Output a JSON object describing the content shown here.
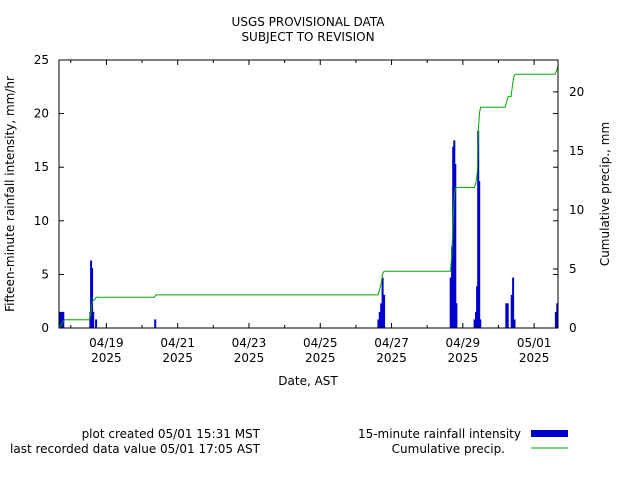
{
  "chart_data": {
    "type": "bar",
    "title_lines": [
      "USGS PROVISIONAL DATA",
      "SUBJECT TO REVISION"
    ],
    "xlabel": "Date, AST",
    "ylabel": "Fifteen-minute rainfall intensity, mm/hr",
    "y2label": "Cumulative precip., mm",
    "xlim": [
      0,
      14.0
    ],
    "ylim": [
      0,
      25
    ],
    "y2lim": [
      0,
      22.7
    ],
    "yticks": [
      0,
      5,
      10,
      15,
      20,
      25
    ],
    "y2ticks": [
      0,
      5,
      10,
      15,
      20
    ],
    "xticks": [
      {
        "x": 1.33,
        "label": "04/19",
        "year": "2025"
      },
      {
        "x": 3.33,
        "label": "04/21",
        "year": "2025"
      },
      {
        "x": 5.33,
        "label": "04/23",
        "year": "2025"
      },
      {
        "x": 7.33,
        "label": "04/25",
        "year": "2025"
      },
      {
        "x": 9.33,
        "label": "04/27",
        "year": "2025"
      },
      {
        "x": 11.33,
        "label": "04/29",
        "year": "2025"
      },
      {
        "x": 13.33,
        "label": "05/01",
        "year": "2025"
      }
    ],
    "grid": false,
    "legend_position": "bottom-right",
    "series": [
      {
        "name": "15-minute rainfall intensity",
        "type": "bar",
        "color": "#0000cc",
        "points": [
          {
            "x": 0.04,
            "y": 1.5
          },
          {
            "x": 0.08,
            "y": 1.5
          },
          {
            "x": 0.12,
            "y": 1.5
          },
          {
            "x": 0.88,
            "y": 1.5
          },
          {
            "x": 0.9,
            "y": 6.3
          },
          {
            "x": 0.93,
            "y": 5.6
          },
          {
            "x": 0.96,
            "y": 1.5
          },
          {
            "x": 1.04,
            "y": 0.8
          },
          {
            "x": 2.7,
            "y": 0.8
          },
          {
            "x": 8.96,
            "y": 0.8
          },
          {
            "x": 9.0,
            "y": 1.5
          },
          {
            "x": 9.04,
            "y": 2.3
          },
          {
            "x": 9.08,
            "y": 4.7
          },
          {
            "x": 9.12,
            "y": 3.1
          },
          {
            "x": 10.99,
            "y": 4.7
          },
          {
            "x": 11.03,
            "y": 7.6
          },
          {
            "x": 11.06,
            "y": 16.9
          },
          {
            "x": 11.09,
            "y": 17.5
          },
          {
            "x": 11.12,
            "y": 15.3
          },
          {
            "x": 11.15,
            "y": 2.3
          },
          {
            "x": 11.66,
            "y": 0.8
          },
          {
            "x": 11.7,
            "y": 1.5
          },
          {
            "x": 11.73,
            "y": 3.9
          },
          {
            "x": 11.76,
            "y": 18.4
          },
          {
            "x": 11.79,
            "y": 13.7
          },
          {
            "x": 11.82,
            "y": 0.8
          },
          {
            "x": 12.55,
            "y": 2.3
          },
          {
            "x": 12.59,
            "y": 2.3
          },
          {
            "x": 12.7,
            "y": 3.1
          },
          {
            "x": 12.74,
            "y": 4.7
          },
          {
            "x": 12.78,
            "y": 0.8
          },
          {
            "x": 13.94,
            "y": 1.5
          },
          {
            "x": 13.98,
            "y": 2.3
          }
        ]
      },
      {
        "name": "Cumulative precip.",
        "type": "line",
        "color": "#00aa00",
        "points": [
          {
            "x": 0.0,
            "y": 0.0
          },
          {
            "x": 0.05,
            "y": 0.2
          },
          {
            "x": 0.1,
            "y": 0.5
          },
          {
            "x": 0.16,
            "y": 0.7
          },
          {
            "x": 0.85,
            "y": 0.7
          },
          {
            "x": 0.9,
            "y": 1.4
          },
          {
            "x": 0.94,
            "y": 2.3
          },
          {
            "x": 1.0,
            "y": 2.4
          },
          {
            "x": 1.05,
            "y": 2.6
          },
          {
            "x": 2.68,
            "y": 2.6
          },
          {
            "x": 2.72,
            "y": 2.8
          },
          {
            "x": 8.95,
            "y": 2.8
          },
          {
            "x": 9.0,
            "y": 3.3
          },
          {
            "x": 9.04,
            "y": 3.8
          },
          {
            "x": 9.08,
            "y": 4.6
          },
          {
            "x": 9.12,
            "y": 4.8
          },
          {
            "x": 10.98,
            "y": 4.8
          },
          {
            "x": 11.02,
            "y": 6.2
          },
          {
            "x": 11.06,
            "y": 9.3
          },
          {
            "x": 11.1,
            "y": 11.5
          },
          {
            "x": 11.14,
            "y": 11.9
          },
          {
            "x": 11.65,
            "y": 11.9
          },
          {
            "x": 11.7,
            "y": 12.3
          },
          {
            "x": 11.74,
            "y": 13.3
          },
          {
            "x": 11.77,
            "y": 17.0
          },
          {
            "x": 11.8,
            "y": 18.3
          },
          {
            "x": 11.83,
            "y": 18.7
          },
          {
            "x": 12.52,
            "y": 18.7
          },
          {
            "x": 12.56,
            "y": 19.2
          },
          {
            "x": 12.6,
            "y": 19.6
          },
          {
            "x": 12.68,
            "y": 19.6
          },
          {
            "x": 12.72,
            "y": 20.5
          },
          {
            "x": 12.76,
            "y": 21.3
          },
          {
            "x": 12.8,
            "y": 21.5
          },
          {
            "x": 13.92,
            "y": 21.5
          },
          {
            "x": 13.96,
            "y": 21.8
          },
          {
            "x": 14.0,
            "y": 22.2
          }
        ]
      }
    ]
  },
  "footer": {
    "created": "plot created 05/01 15:31 MST",
    "last_value": "last recorded data value 05/01 17:05 AST"
  }
}
